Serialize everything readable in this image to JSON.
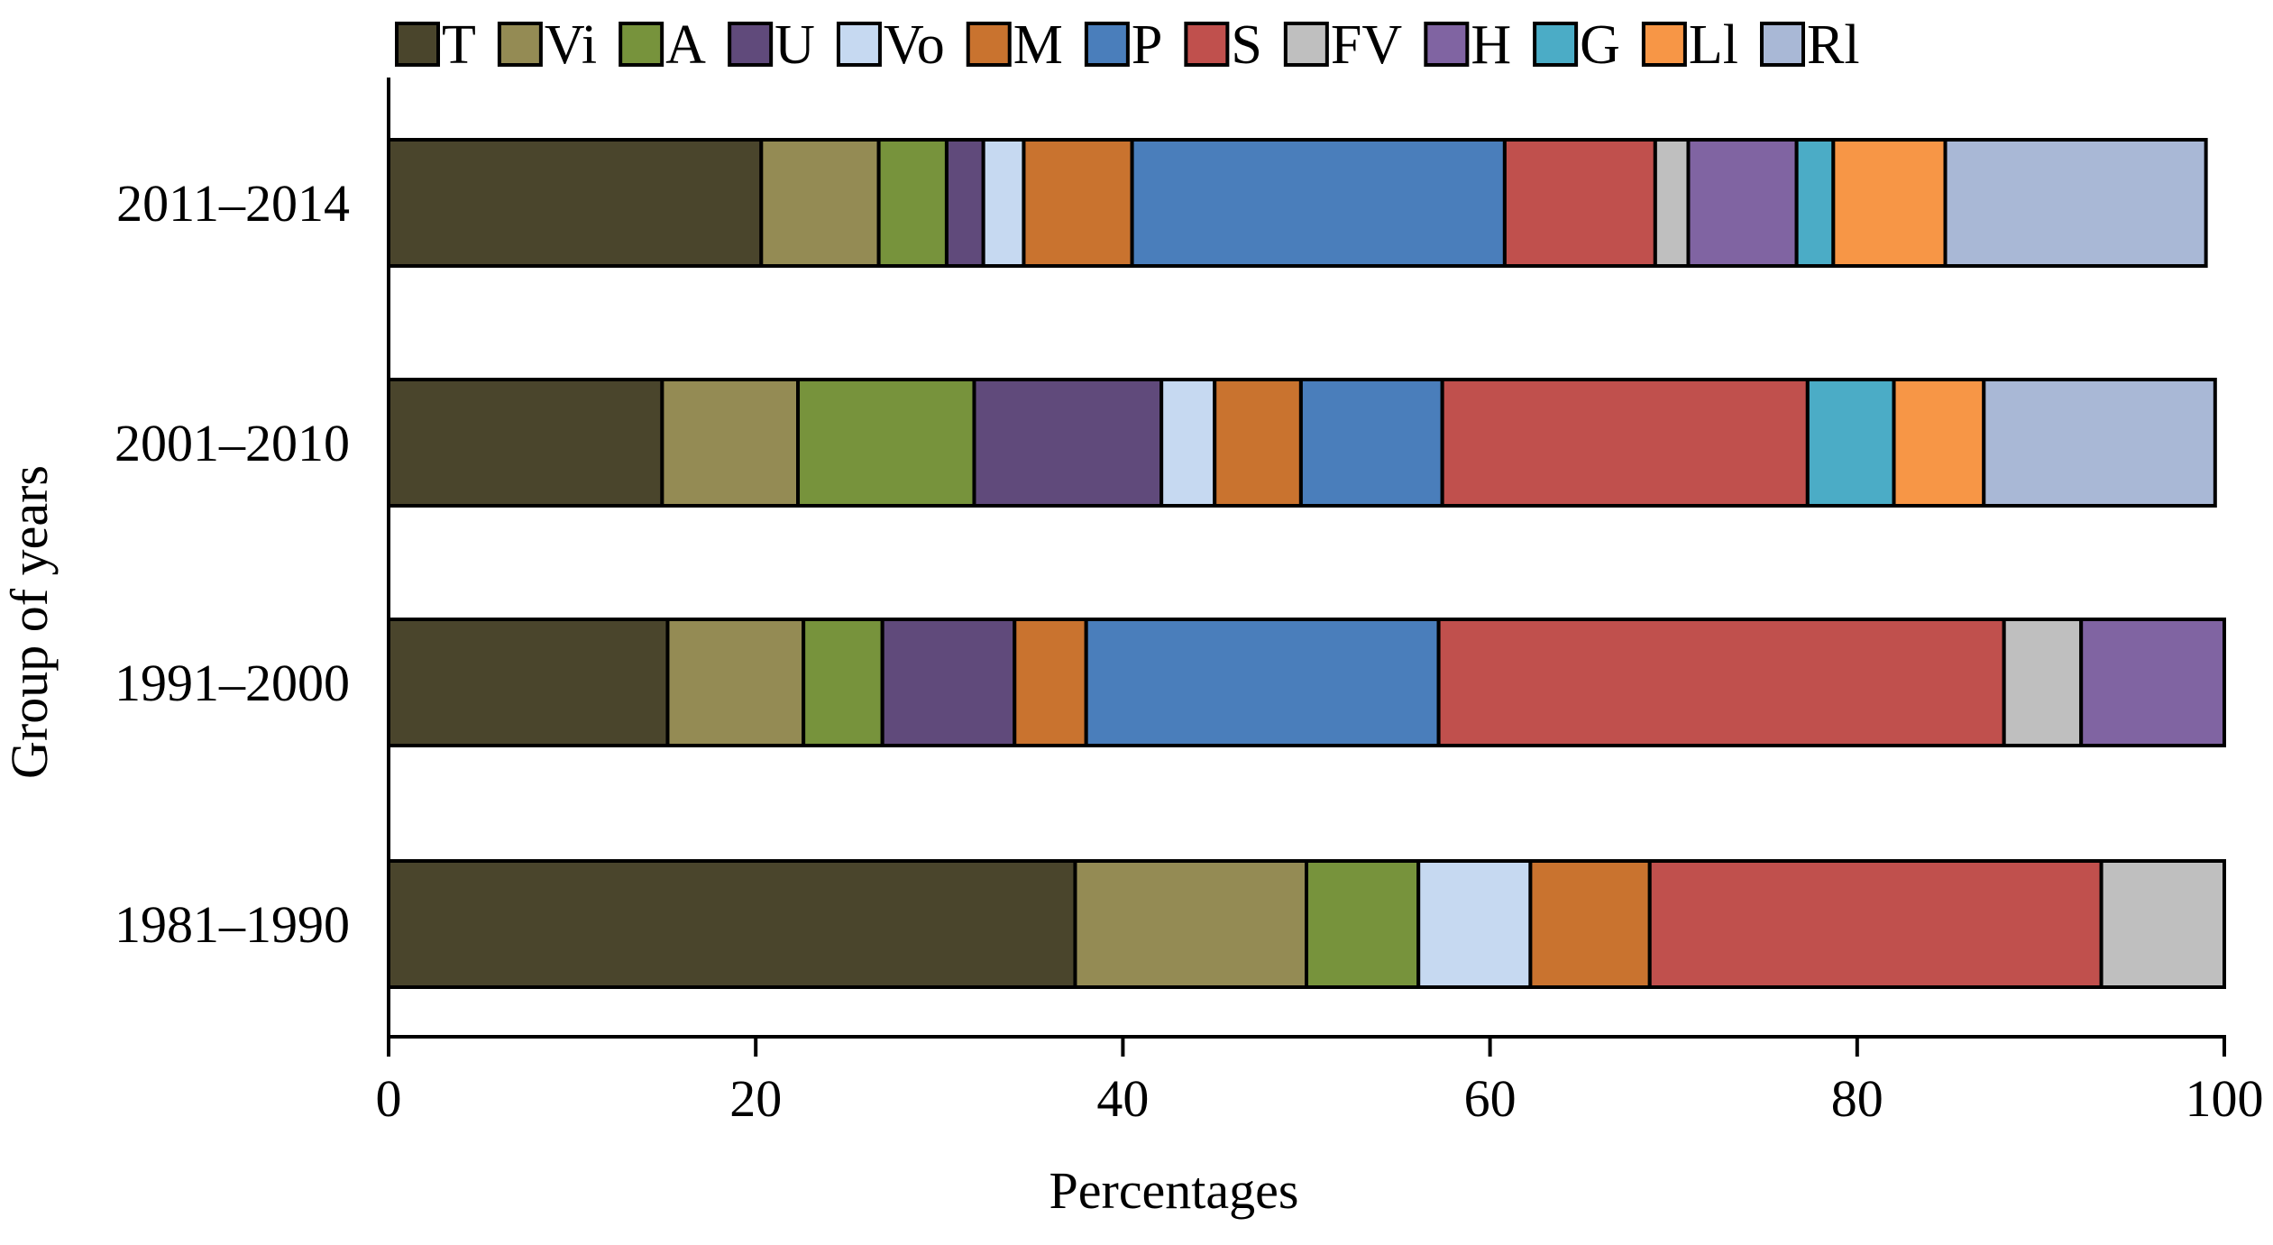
{
  "chart_data": {
    "type": "bar",
    "orientation": "horizontal",
    "stacked": true,
    "title": "",
    "xlabel": "Percentages",
    "ylabel": "Group of years",
    "xlim": [
      0,
      100
    ],
    "xticks": [
      "0",
      "20",
      "40",
      "60",
      "80",
      "100"
    ],
    "legend_position": "top",
    "grid": false,
    "categories": [
      "2011–2014",
      "2001–2010",
      "1991–2000",
      "1981–1990"
    ],
    "series": [
      {
        "name": "T",
        "color": "#4a452c",
        "values": [
          20.3,
          14.9,
          15.2,
          37.4
        ]
      },
      {
        "name": "Vi",
        "color": "#948b54",
        "values": [
          6.4,
          7.4,
          7.4,
          12.6
        ]
      },
      {
        "name": "A",
        "color": "#77933c",
        "values": [
          3.7,
          9.6,
          4.3,
          6.1
        ]
      },
      {
        "name": "U",
        "color": "#604a7b",
        "values": [
          2.0,
          10.2,
          7.2,
          0
        ]
      },
      {
        "name": "Vo",
        "color": "#c6d9f1",
        "values": [
          2.2,
          2.9,
          0,
          6.1
        ]
      },
      {
        "name": "M",
        "color": "#c9732f",
        "values": [
          5.9,
          4.7,
          3.9,
          6.5
        ]
      },
      {
        "name": "P",
        "color": "#4a7ebb",
        "values": [
          20.3,
          7.7,
          19.2,
          0
        ]
      },
      {
        "name": "S",
        "color": "#c0504d",
        "values": [
          8.2,
          19.9,
          30.8,
          24.6
        ]
      },
      {
        "name": "FV",
        "color": "#bfbfbf",
        "values": [
          1.8,
          0,
          4.2,
          6.7
        ]
      },
      {
        "name": "H",
        "color": "#8064a2",
        "values": [
          5.9,
          0,
          7.8,
          0
        ]
      },
      {
        "name": "G",
        "color": "#4bacc6",
        "values": [
          2.0,
          4.7,
          0,
          0
        ]
      },
      {
        "name": "Ll",
        "color": "#f79646",
        "values": [
          6.1,
          4.9,
          0,
          0
        ]
      },
      {
        "name": "Rl",
        "color": "#a9b8d6",
        "values": [
          14.2,
          12.6,
          0,
          0
        ]
      }
    ]
  }
}
